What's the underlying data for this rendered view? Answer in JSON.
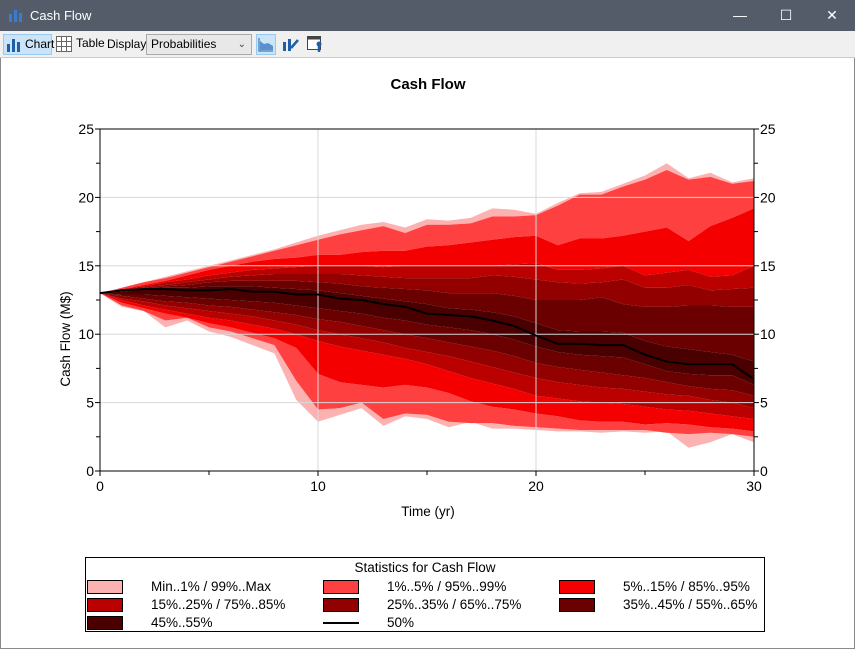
{
  "window": {
    "title": "Cash Flow"
  },
  "toolbar": {
    "chart_label": "Chart",
    "table_label": "Table",
    "display_label": "Display:",
    "display_value": "Probabilities"
  },
  "chart_data": {
    "type": "area",
    "title": "Cash Flow",
    "xlabel": "Time (yr)",
    "ylabel": "Cash Flow (M$)",
    "xlim": [
      0,
      30
    ],
    "ylim": [
      0,
      25
    ],
    "x_ticks": [
      "0",
      "10",
      "20",
      "30"
    ],
    "y_ticks": [
      "0",
      "5",
      "10",
      "15",
      "20",
      "25"
    ],
    "grid": true,
    "x": [
      0,
      1,
      2,
      3,
      4,
      5,
      6,
      7,
      8,
      9,
      10,
      11,
      12,
      13,
      14,
      15,
      16,
      17,
      18,
      19,
      20,
      21,
      22,
      23,
      24,
      25,
      26,
      27,
      28,
      29,
      30
    ],
    "quantiles": {
      "max": [
        13,
        13.4,
        13.8,
        14.2,
        14.6,
        15,
        15.4,
        15.8,
        16.2,
        16.7,
        17.2,
        17.6,
        18,
        18.2,
        17.8,
        18.4,
        18.3,
        18.5,
        19.2,
        19.1,
        18.8,
        19.6,
        20.3,
        20.4,
        21,
        21.6,
        22.5,
        21.4,
        21.8,
        21.1,
        21.4
      ],
      "p99": [
        13,
        13.4,
        13.8,
        14.1,
        14.5,
        14.9,
        15.3,
        15.7,
        16.1,
        16.5,
        16.9,
        17.3,
        17.6,
        17.9,
        17.4,
        18,
        18,
        18.1,
        18.6,
        18.6,
        18.7,
        19.4,
        20.2,
        20.2,
        20.8,
        21.3,
        22,
        21.3,
        21.5,
        21,
        21.2
      ],
      "p95": [
        13,
        13.3,
        13.6,
        13.9,
        14.3,
        14.7,
        15,
        15.3,
        15.5,
        15.6,
        15.8,
        15.8,
        16,
        16.1,
        16.1,
        16.4,
        16.5,
        16.7,
        16.9,
        17.1,
        17.2,
        16.5,
        17,
        17,
        17.2,
        17.5,
        17.8,
        16.8,
        17.9,
        18.5,
        19.2
      ],
      "p85": [
        13,
        13.3,
        13.5,
        13.8,
        14,
        14.3,
        14.5,
        14.7,
        14.8,
        14.9,
        15,
        15,
        15,
        14.9,
        15,
        15,
        15,
        15,
        15,
        15.1,
        15.2,
        14.7,
        14.7,
        14.8,
        15,
        14.3,
        14.5,
        14.7,
        14.2,
        14.3,
        15
      ],
      "p75": [
        13,
        13.2,
        13.4,
        13.6,
        13.8,
        14,
        14.2,
        14.3,
        14.4,
        14.4,
        14.4,
        14.4,
        14.3,
        14.2,
        14.1,
        14.1,
        14.1,
        14.1,
        14.3,
        14.2,
        14,
        13.8,
        13.7,
        13.8,
        14,
        13.4,
        13.4,
        13.6,
        13.2,
        13.3,
        13.4
      ],
      "p65": [
        13,
        13.2,
        13.3,
        13.5,
        13.6,
        13.8,
        13.9,
        13.9,
        13.9,
        13.9,
        13.8,
        13.7,
        13.5,
        13.4,
        13.3,
        13.2,
        13,
        13,
        13,
        12.8,
        12.5,
        12.5,
        12.5,
        12.7,
        12.2,
        12,
        12,
        12.1,
        12.1,
        12,
        12
      ],
      "p55": [
        13,
        13.1,
        13.3,
        13.4,
        13.4,
        13.5,
        13.5,
        13.5,
        13.4,
        13.3,
        13.2,
        13,
        12.8,
        12.6,
        12.4,
        12.2,
        11.9,
        11.8,
        11.6,
        11.3,
        10.8,
        10.3,
        10.2,
        10.2,
        10.1,
        9.5,
        9.1,
        8.9,
        8.7,
        8.5,
        8
      ],
      "p50": [
        13,
        13.2,
        13.3,
        13.3,
        13.2,
        13.2,
        13.3,
        13.1,
        13.1,
        12.9,
        12.9,
        12.6,
        12.5,
        12.2,
        12,
        11.5,
        11.4,
        11.3,
        11,
        10.6,
        9.9,
        9.3,
        9.3,
        9.2,
        9.2,
        8.5,
        8,
        7.8,
        7.8,
        7.8,
        6.7
      ],
      "p45": [
        13,
        12.9,
        12.9,
        12.8,
        12.7,
        12.6,
        12.5,
        12.4,
        12.3,
        12.1,
        11.9,
        11.7,
        11.5,
        11.2,
        11,
        10.7,
        10.5,
        10.3,
        10,
        9.6,
        9.1,
        8.7,
        8.5,
        8.4,
        8.3,
        7.8,
        7.3,
        7.1,
        7,
        7,
        6.3
      ],
      "p35": [
        13,
        12.8,
        12.6,
        12.4,
        12.3,
        12.1,
        12,
        11.8,
        11.6,
        11.4,
        11.1,
        10.9,
        10.6,
        10.3,
        10,
        9.7,
        9.4,
        9.1,
        8.8,
        8.4,
        7.9,
        7.6,
        7.4,
        7.2,
        7,
        6.8,
        6.5,
        6.2,
        6,
        5.9,
        5.5
      ],
      "p25": [
        13,
        12.6,
        12.4,
        12.1,
        11.9,
        11.7,
        11.5,
        11.3,
        11,
        10.7,
        10.3,
        10,
        9.7,
        9.4,
        9,
        8.7,
        8.4,
        8,
        7.6,
        7.2,
        6.8,
        6.5,
        6.3,
        6.1,
        6,
        5.8,
        5.6,
        5.5,
        5.2,
        5,
        4.6
      ],
      "p15": [
        13,
        12.5,
        12.1,
        11.8,
        11.5,
        11.2,
        11,
        10.7,
        10.4,
        10,
        9.5,
        9.1,
        8.8,
        8.5,
        8.2,
        7.8,
        7.3,
        6.8,
        6.4,
        6,
        5.5,
        5.3,
        5.1,
        5,
        4.9,
        4.7,
        4.5,
        4.4,
        4.2,
        4,
        3.8
      ],
      "p5": [
        13,
        12.3,
        11.9,
        11.5,
        11.2,
        10.8,
        10.5,
        10.1,
        9.7,
        9,
        7.1,
        6.5,
        6.3,
        6.1,
        6.3,
        6.1,
        5.7,
        5.1,
        4.7,
        4.5,
        4.2,
        4,
        3.7,
        3.6,
        3.6,
        3.4,
        3.5,
        3.4,
        3.2,
        3.1,
        2.9
      ],
      "p1": [
        13,
        12.1,
        11.7,
        11,
        11.2,
        10.5,
        10.2,
        9.7,
        9.2,
        6.6,
        4.5,
        4.6,
        5,
        3.8,
        4.2,
        4.1,
        3.6,
        3.5,
        3.5,
        3.3,
        3.2,
        3.1,
        3,
        3,
        3,
        3,
        2.8,
        2.7,
        2.8,
        2.7,
        2.5
      ],
      "min": [
        13,
        12,
        11.7,
        10.5,
        11,
        10.2,
        9.8,
        9.2,
        8.6,
        5.2,
        3.6,
        4.1,
        4.6,
        3.3,
        4,
        3.8,
        3.2,
        3.6,
        3.1,
        3.1,
        3,
        2.9,
        2.9,
        2.8,
        2.9,
        2.8,
        2.9,
        1.7,
        2.1,
        2.7,
        2.1
      ]
    },
    "legend": {
      "title": "Statistics for Cash Flow",
      "placement": "bottom",
      "entries": [
        {
          "label": "Min..1% / 99%..Max",
          "color": "#fdb2b2",
          "lo": [
            "min",
            "p1"
          ],
          "hi": [
            "p99",
            "max"
          ]
        },
        {
          "label": "1%..5% / 95%..99%",
          "color": "#ff4040",
          "lo": [
            "p1",
            "p5"
          ],
          "hi": [
            "p95",
            "p99"
          ]
        },
        {
          "label": "5%..15% / 85%..95%",
          "color": "#f40000",
          "lo": [
            "p5",
            "p15"
          ],
          "hi": [
            "p85",
            "p95"
          ]
        },
        {
          "label": "15%..25% / 75%..85%",
          "color": "#bb0000",
          "lo": [
            "p15",
            "p25"
          ],
          "hi": [
            "p75",
            "p85"
          ]
        },
        {
          "label": "25%..35% / 65%..75%",
          "color": "#920000",
          "lo": [
            "p25",
            "p35"
          ],
          "hi": [
            "p65",
            "p75"
          ]
        },
        {
          "label": "35%..45% / 55%..65%",
          "color": "#6b0000",
          "lo": [
            "p35",
            "p45"
          ],
          "hi": [
            "p55",
            "p65"
          ]
        },
        {
          "label": "45%..55%",
          "color": "#4a0000",
          "lo": [
            "p45",
            "p55"
          ]
        },
        {
          "label": "50%",
          "color": "#000000",
          "line": "p50"
        }
      ]
    }
  }
}
